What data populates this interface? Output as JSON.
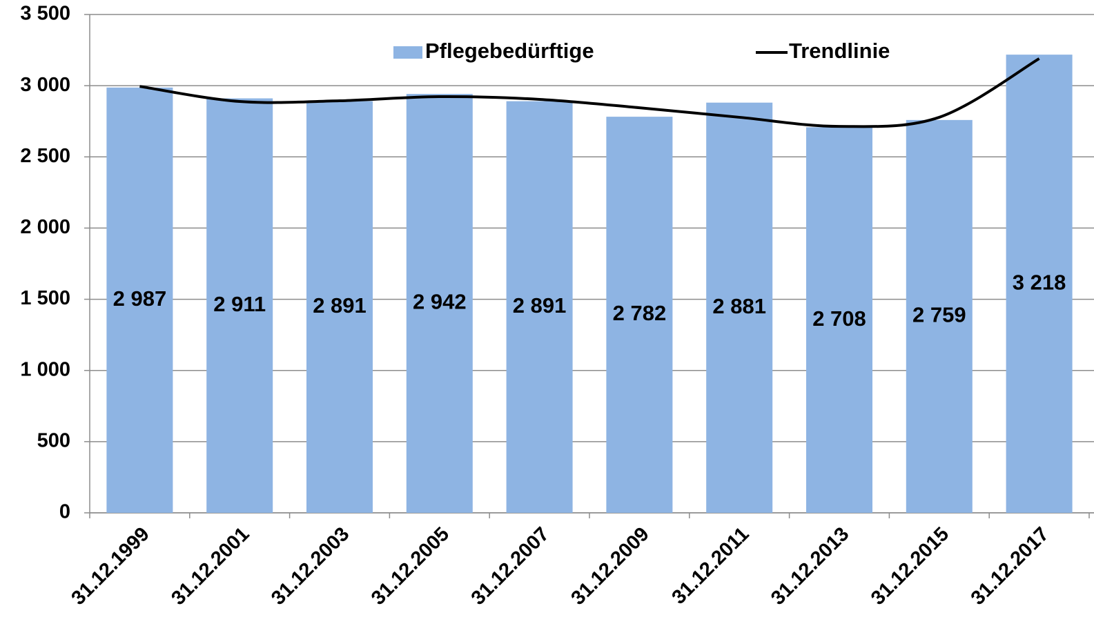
{
  "chart_data": {
    "type": "bar",
    "categories": [
      "31.12.1999",
      "31.12.2001",
      "31.12.2003",
      "31.12.2005",
      "31.12.2007",
      "31.12.2009",
      "31.12.2011",
      "31.12.2013",
      "31.12.2015",
      "31.12.2017"
    ],
    "series": [
      {
        "name": "Pflegebedürftige",
        "type": "bar",
        "color": "#8eb4e3",
        "values": [
          2987,
          2911,
          2891,
          2942,
          2891,
          2782,
          2881,
          2708,
          2759,
          3218
        ],
        "value_labels": [
          "2 987",
          "2 911",
          "2 891",
          "2 942",
          "2 891",
          "2 782",
          "2 881",
          "2 708",
          "2 759",
          "3 218"
        ]
      },
      {
        "name": "Trendlinie",
        "type": "line",
        "color": "#000000",
        "values": [
          2995,
          2889,
          2894,
          2923,
          2904,
          2845,
          2778,
          2714,
          2778,
          3190
        ]
      }
    ],
    "ylim": [
      0,
      3500
    ],
    "yticks": [
      0,
      500,
      {
        "value": 1000,
        "label": "1 000"
      },
      {
        "value": 1500,
        "label": "1 500"
      },
      {
        "value": 2000,
        "label": "2 000"
      },
      {
        "value": 2500,
        "label": "2 500"
      },
      {
        "value": 3000,
        "label": "3 000"
      },
      {
        "value": 3500,
        "label": "3 500"
      }
    ],
    "grid": true,
    "legend": "top"
  }
}
